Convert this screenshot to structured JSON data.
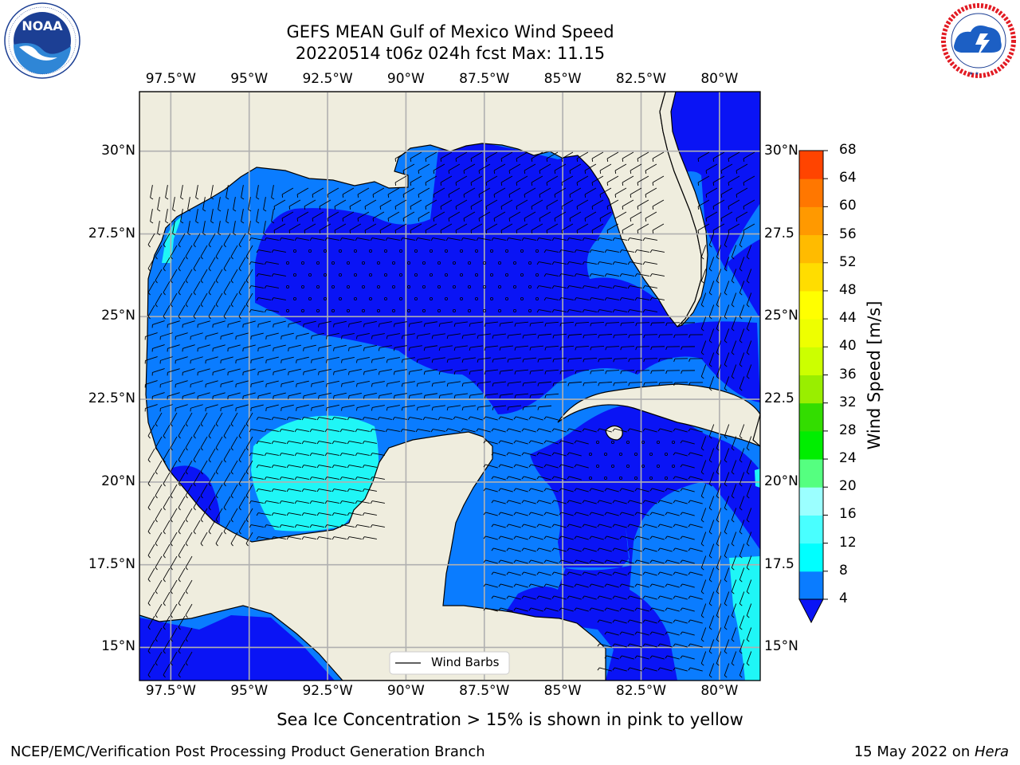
{
  "header": {
    "title_line1": "GEFS MEAN Gulf of Mexico Wind Speed",
    "title_line2": "20220514 t06z 024h fcst   Max: 11.15"
  },
  "logos": {
    "left": {
      "icon": "noaa-logo",
      "text": "NOAA",
      "ring_text": "NATIONAL OCEANIC AND ATMOSPHERIC ADMINISTRATION · U.S. DEPARTMENT OF COMMERCE"
    },
    "right": {
      "icon": "nws-logo",
      "ring_text": "NATIONAL WEATHER SERVICE"
    }
  },
  "map": {
    "lon_range": [
      -98.5,
      -78.7
    ],
    "lat_range": [
      14,
      31.8
    ],
    "lon_ticks": [
      "97.5°W",
      "95°W",
      "92.5°W",
      "90°W",
      "87.5°W",
      "85°W",
      "82.5°W",
      "80°W"
    ],
    "lat_ticks_left": [
      "30°N",
      "27.5°N",
      "25°N",
      "22.5°N",
      "20°N",
      "17.5°N",
      "15°N"
    ],
    "lat_ticks_right": [
      "30°N",
      "27.5",
      "25°N",
      "22.5",
      "20°N",
      "17.5",
      "15°N"
    ],
    "legend_label": "Wind Barbs",
    "colors": {
      "land": "#efedde",
      "wind_4_8": "#0a7cff",
      "wind_0_4": "#0a14f5",
      "wind_8_12": "#1ff6f6",
      "grid": "#b0b0b0"
    }
  },
  "colorbar": {
    "label": "Wind Speed [m/s]",
    "ticks": [
      "4",
      "8",
      "12",
      "16",
      "20",
      "24",
      "28",
      "32",
      "36",
      "40",
      "44",
      "48",
      "52",
      "56",
      "60",
      "64",
      "68"
    ],
    "colors": [
      "#0a7cff",
      "#00ffff",
      "#49ffff",
      "#9bffff",
      "#55ff80",
      "#00ee00",
      "#33dd00",
      "#99ee00",
      "#ccff00",
      "#eeff00",
      "#ffff00",
      "#ffdd00",
      "#ffbb00",
      "#ff9900",
      "#ff7700",
      "#ff4400"
    ],
    "under_color": "#0a14f5"
  },
  "footer": {
    "note": "Sea Ice Concentration > 15% is shown in pink to yellow",
    "left": "NCEP/EMC/Verification Post Processing Product Generation Branch",
    "right_prefix": "15 May 2022 on ",
    "right_host": "Hera"
  }
}
